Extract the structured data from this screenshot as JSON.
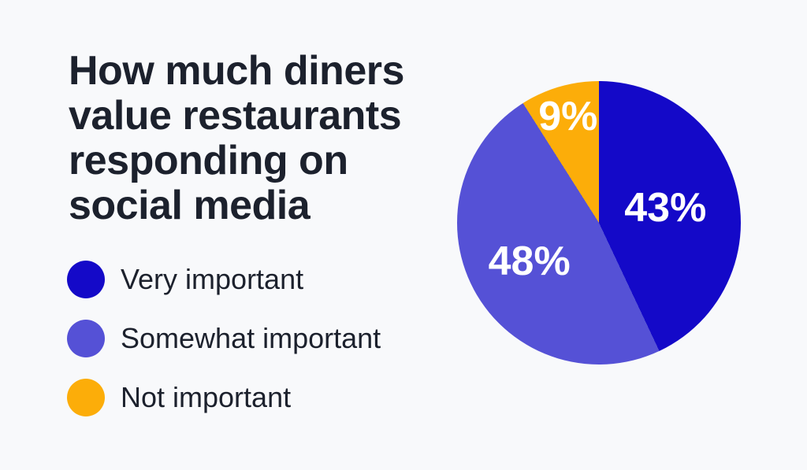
{
  "background_color": "#f8f9fb",
  "text_color": "#1c212d",
  "title": {
    "text": "How much diners\nvalue restaurants\nresponding on\nsocial media"
  },
  "legend": {
    "position": "left",
    "items": [
      {
        "label": "Very important",
        "color": "#1409c8"
      },
      {
        "label": "Somewhat important",
        "color": "#5551d6"
      },
      {
        "label": "Not important",
        "color": "#fcad09"
      }
    ]
  },
  "chart_data": {
    "type": "pie",
    "title": "How much diners value restaurants responding on social media",
    "categories": [
      "Very important",
      "Somewhat important",
      "Not important"
    ],
    "values": [
      43,
      48,
      9
    ],
    "value_suffix": "%",
    "data_labels": [
      "43%",
      "48%",
      "9%"
    ],
    "colors": [
      "#1409c8",
      "#5551d6",
      "#fcad09"
    ],
    "start_angle_deg": 0,
    "direction": "clockwise",
    "legend_position": "left",
    "label_radius_fractions": [
      0.48,
      0.56,
      0.78
    ]
  }
}
